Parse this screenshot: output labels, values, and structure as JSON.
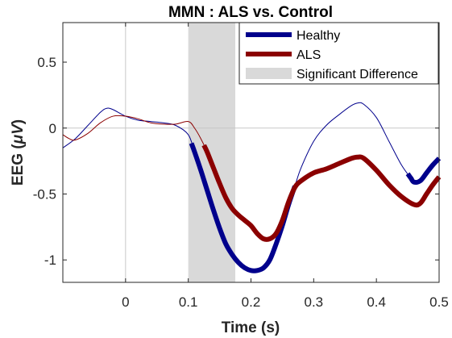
{
  "chart_data": {
    "type": "line",
    "title": "MMN : ALS vs. Control",
    "xlabel": "Time (s)",
    "ylabel_main": "EEG (",
    "ylabel_unit": "μV",
    "ylabel_close": ")",
    "xlim": [
      -0.1,
      0.5
    ],
    "ylim": [
      -1.17,
      0.8
    ],
    "xticks": [
      0,
      0.1,
      0.2,
      0.3,
      0.4,
      0.5
    ],
    "xtick_labels": [
      "0",
      "0.1",
      "0.2",
      "0.3",
      "0.4",
      "0.5"
    ],
    "yticks": [
      -1,
      -0.5,
      0,
      0.5
    ],
    "ytick_labels": [
      "-1",
      "-0.5",
      "0",
      "0.5"
    ],
    "grid": false,
    "zero_lines": true,
    "shaded_region": {
      "name": "Significant Difference",
      "x": [
        0.1,
        0.175
      ],
      "color": "#d9d9d9"
    },
    "legend_position": "top-right",
    "series": [
      {
        "name": "Healthy",
        "color": "#00008c",
        "x": [
          -0.1,
          -0.08,
          -0.06,
          -0.04,
          -0.03,
          -0.02,
          0.0,
          0.02,
          0.04,
          0.06,
          0.08,
          0.1,
          0.11,
          0.12,
          0.13,
          0.14,
          0.15,
          0.16,
          0.17,
          0.18,
          0.19,
          0.2,
          0.21,
          0.22,
          0.23,
          0.24,
          0.25,
          0.26,
          0.27,
          0.28,
          0.3,
          0.32,
          0.34,
          0.36,
          0.37,
          0.38,
          0.4,
          0.42,
          0.44,
          0.455,
          0.46,
          0.47,
          0.48,
          0.49,
          0.5
        ],
        "values": [
          -0.15,
          -0.08,
          0.02,
          0.12,
          0.15,
          0.14,
          0.09,
          0.06,
          0.05,
          0.04,
          0.02,
          -0.05,
          -0.18,
          -0.32,
          -0.47,
          -0.62,
          -0.76,
          -0.88,
          -0.96,
          -1.02,
          -1.06,
          -1.08,
          -1.08,
          -1.06,
          -1.0,
          -0.88,
          -0.74,
          -0.58,
          -0.44,
          -0.3,
          -0.1,
          0.02,
          0.1,
          0.17,
          0.19,
          0.18,
          0.08,
          -0.1,
          -0.28,
          -0.38,
          -0.41,
          -0.4,
          -0.34,
          -0.28,
          -0.23
        ],
        "thick_segments": [
          [
            0.105,
            0.27
          ],
          [
            0.45,
            0.5
          ]
        ]
      },
      {
        "name": "ALS",
        "color": "#8b0000",
        "x": [
          -0.1,
          -0.09,
          -0.08,
          -0.06,
          -0.04,
          -0.02,
          0.0,
          0.02,
          0.04,
          0.06,
          0.08,
          0.1,
          0.11,
          0.12,
          0.13,
          0.14,
          0.15,
          0.16,
          0.17,
          0.18,
          0.19,
          0.2,
          0.21,
          0.22,
          0.23,
          0.24,
          0.25,
          0.26,
          0.27,
          0.28,
          0.3,
          0.32,
          0.34,
          0.36,
          0.37,
          0.38,
          0.4,
          0.42,
          0.44,
          0.46,
          0.47,
          0.48,
          0.49,
          0.5
        ],
        "values": [
          -0.05,
          -0.08,
          -0.09,
          -0.04,
          0.04,
          0.09,
          0.09,
          0.07,
          0.04,
          0.03,
          0.03,
          0.05,
          0.0,
          -0.08,
          -0.18,
          -0.3,
          -0.42,
          -0.53,
          -0.61,
          -0.66,
          -0.7,
          -0.74,
          -0.8,
          -0.84,
          -0.84,
          -0.8,
          -0.7,
          -0.56,
          -0.45,
          -0.4,
          -0.34,
          -0.31,
          -0.27,
          -0.23,
          -0.22,
          -0.23,
          -0.32,
          -0.43,
          -0.52,
          -0.58,
          -0.57,
          -0.5,
          -0.43,
          -0.37
        ],
        "thick_segments": [
          [
            0.125,
            0.5
          ]
        ]
      }
    ]
  }
}
